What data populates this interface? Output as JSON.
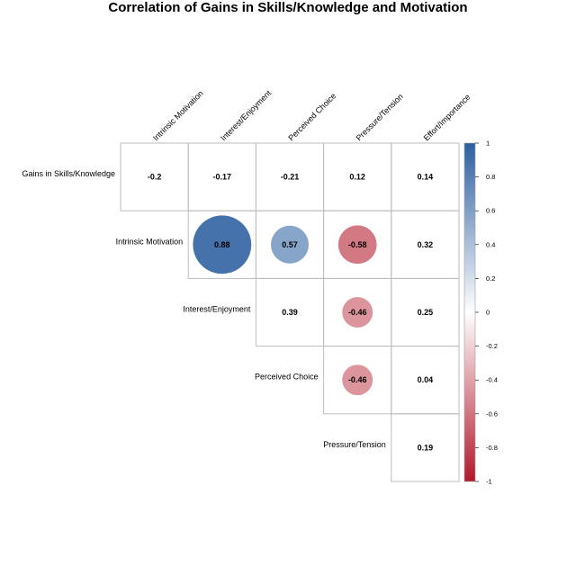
{
  "chart_data": {
    "type": "heatmap",
    "title": "Correlation of Gains in Skills/Knowledge and Motivation",
    "columns": [
      "Intrinsic Motivation",
      "Interest/Enjoyment",
      "Perceived Choice",
      "Pressure/Tension",
      "Effort/Importance"
    ],
    "rows": [
      "Gains in Skills/Knowledge",
      "Intrinsic Motivation",
      "Interest/Enjoyment",
      "Perceived Choice",
      "Pressure/Tension"
    ],
    "cells": [
      {
        "row": 0,
        "col": 0,
        "value": -0.2,
        "label": "-0.2",
        "shape": "number"
      },
      {
        "row": 0,
        "col": 1,
        "value": -0.17,
        "label": "-0.17",
        "shape": "number"
      },
      {
        "row": 0,
        "col": 2,
        "value": -0.21,
        "label": "-0.21",
        "shape": "number"
      },
      {
        "row": 0,
        "col": 3,
        "value": 0.12,
        "label": "0.12",
        "shape": "number"
      },
      {
        "row": 0,
        "col": 4,
        "value": 0.14,
        "label": "0.14",
        "shape": "number"
      },
      {
        "row": 1,
        "col": 1,
        "value": 0.88,
        "label": "0.88",
        "shape": "circle"
      },
      {
        "row": 1,
        "col": 2,
        "value": 0.57,
        "label": "0.57",
        "shape": "circle"
      },
      {
        "row": 1,
        "col": 3,
        "value": -0.58,
        "label": "-0.58",
        "shape": "circle"
      },
      {
        "row": 1,
        "col": 4,
        "value": 0.32,
        "label": "0.32",
        "shape": "number"
      },
      {
        "row": 2,
        "col": 2,
        "value": 0.39,
        "label": "0.39",
        "shape": "number"
      },
      {
        "row": 2,
        "col": 3,
        "value": -0.46,
        "label": "-0.46",
        "shape": "circle"
      },
      {
        "row": 2,
        "col": 4,
        "value": 0.25,
        "label": "0.25",
        "shape": "number"
      },
      {
        "row": 3,
        "col": 3,
        "value": -0.46,
        "label": "-0.46",
        "shape": "circle"
      },
      {
        "row": 3,
        "col": 4,
        "value": 0.04,
        "label": "0.04",
        "shape": "number"
      },
      {
        "row": 4,
        "col": 4,
        "value": 0.19,
        "label": "0.19",
        "shape": "number"
      }
    ],
    "colorbar": {
      "range": [
        -1,
        1
      ],
      "ticks": [
        1,
        0.8,
        0.6,
        0.4,
        0.2,
        0,
        -0.2,
        -0.4,
        -0.6,
        -0.8,
        -1
      ],
      "tick_labels": [
        "1",
        "0.8",
        "0.6",
        "0.4",
        "0.2",
        "0",
        "-0.2",
        "-0.4",
        "-0.6",
        "-0.8",
        "-1"
      ],
      "low_color": "#b2182b",
      "mid_color": "#ffffff",
      "high_color": "#2d5fa0"
    },
    "grid": true,
    "layout": "upper-triangle"
  }
}
